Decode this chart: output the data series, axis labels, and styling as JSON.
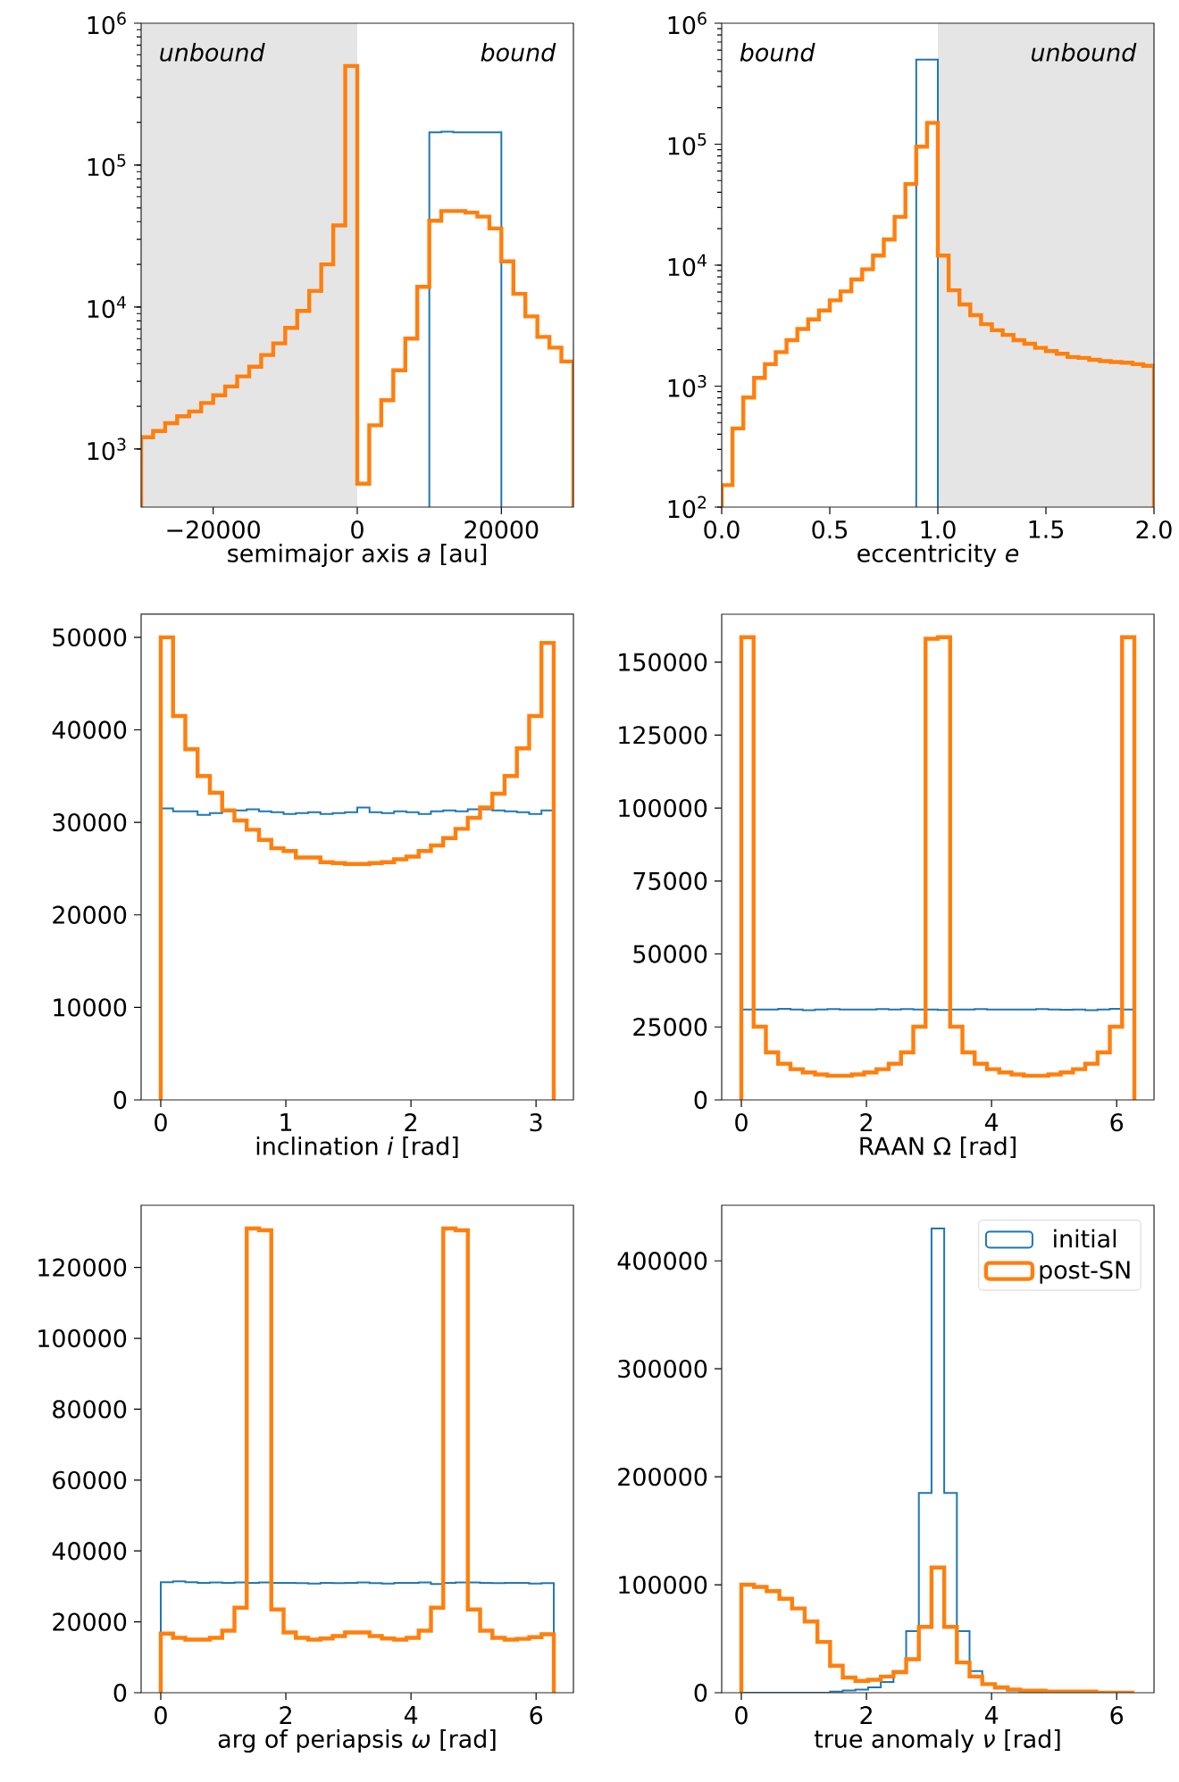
{
  "chart_data": [
    {
      "type": "histogram",
      "xlabel": "semimajor axis *a*  [au]",
      "log": "y",
      "xlim": [
        -30000,
        30000
      ],
      "ylim": [
        390,
        1000000
      ],
      "xticks": [
        {
          "value": -20000,
          "label": "−20000"
        },
        0,
        20000
      ],
      "yticks": [
        {
          "value": 1000,
          "label": "10$^{3}$"
        },
        {
          "value": 10000,
          "label": "10$^{4}$"
        },
        {
          "value": 100000,
          "label": "10$^{5}$"
        },
        {
          "value": 1000000,
          "label": "10$^{6}$"
        }
      ],
      "bands": [
        {
          "axis": "x",
          "from": -30000,
          "to": 0,
          "label": "unbound",
          "color": "#e5e5e5"
        }
      ],
      "annotations": [
        "bound"
      ],
      "bins": [
        -30000,
        -28333.33,
        -26666.67,
        -25000,
        -23333.33,
        -21666.67,
        -20000,
        -18333.33,
        -16666.67,
        -15000,
        -13333.33,
        -11666.67,
        -10000,
        -8333.33,
        -6666.67,
        -5000,
        -3333.33,
        -1666.67,
        0,
        1666.67,
        3333.33,
        5000,
        6666.67,
        8333.33,
        10000,
        11666.67,
        13333.33,
        15000,
        16666.67,
        18333.33,
        20000,
        21666.67,
        23333.33,
        25000,
        26666.67,
        28333.33,
        30000
      ],
      "series": [
        {
          "color": "#1f77b4",
          "bins": [
            10000,
            11666.67,
            13333.33,
            15000,
            16666.67,
            18333.33,
            20000
          ],
          "values": [
            170000,
            172000,
            170000,
            170000,
            170000,
            170000
          ]
        },
        {
          "color": "#ff7f0e",
          "values": [
            1210,
            1340,
            1520,
            1700,
            1840,
            2110,
            2390,
            2760,
            3250,
            3800,
            4600,
            5550,
            7130,
            9400,
            13000,
            20000,
            37600,
            500000,
            570,
            1470,
            2210,
            3590,
            6000,
            13900,
            40600,
            47500,
            47500,
            46300,
            43400,
            35800,
            21000,
            12400,
            8600,
            6160,
            5180,
            4140
          ]
        }
      ]
    },
    {
      "type": "histogram",
      "xlabel": "eccentricity *e*",
      "log": "y",
      "xlim": [
        0,
        2
      ],
      "ylim": [
        100,
        1000000
      ],
      "xticks": [
        {
          "value": 0,
          "label": "0.0"
        },
        {
          "value": 0.5,
          "label": "0.5"
        },
        {
          "value": 1,
          "label": "1.0"
        },
        {
          "value": 1.5,
          "label": "1.5"
        },
        {
          "value": 2,
          "label": "2.0"
        }
      ],
      "yticks": [
        {
          "value": 100,
          "label": "10$^{2}$"
        },
        {
          "value": 1000,
          "label": "10$^{3}$"
        },
        {
          "value": 10000,
          "label": "10$^{4}$"
        },
        {
          "value": 100000,
          "label": "10$^{5}$"
        },
        {
          "value": 1000000,
          "label": "10$^{6}$"
        }
      ],
      "bands": [
        {
          "axis": "x",
          "from": 1,
          "to": 2,
          "label": "unbound",
          "color": "#e5e5e5"
        }
      ],
      "annotations": [
        "bound"
      ],
      "bins": [
        0,
        0.05,
        0.1,
        0.15,
        0.2,
        0.25,
        0.3,
        0.35,
        0.4,
        0.45,
        0.5,
        0.55,
        0.6,
        0.65,
        0.7,
        0.75,
        0.8,
        0.85,
        0.9,
        0.95,
        1.0,
        1.05,
        1.1,
        1.15,
        1.2,
        1.25,
        1.3,
        1.35,
        1.4,
        1.45,
        1.5,
        1.55,
        1.6,
        1.65,
        1.7,
        1.75,
        1.8,
        1.85,
        1.9,
        1.95,
        2.0
      ],
      "series": [
        {
          "color": "#1f77b4",
          "bins": [
            0.9,
            0.95,
            1.0
          ],
          "values": [
            500000,
            500000
          ]
        },
        {
          "color": "#ff7f0e",
          "values": [
            152,
            447,
            805,
            1170,
            1520,
            1910,
            2400,
            2970,
            3560,
            4220,
            5120,
            6070,
            7620,
            9240,
            12000,
            16300,
            25100,
            46800,
            95500,
            150000,
            12000,
            6200,
            4730,
            3860,
            3250,
            2900,
            2650,
            2400,
            2240,
            2070,
            1950,
            1850,
            1740,
            1710,
            1650,
            1610,
            1580,
            1560,
            1520,
            1470
          ]
        }
      ]
    },
    {
      "type": "histogram",
      "xlabel": "inclination *i*  [rad]",
      "xlim": [
        -0.157,
        3.299
      ],
      "ylim": [
        0,
        52500
      ],
      "xticks": [
        0,
        1,
        2,
        3
      ],
      "yticks": [
        0,
        10000,
        20000,
        30000,
        40000,
        50000
      ],
      "bins": [
        0,
        0.0982,
        0.1963,
        0.2945,
        0.3927,
        0.4909,
        0.589,
        0.6872,
        0.7854,
        0.8836,
        0.9817,
        1.0799,
        1.1781,
        1.2763,
        1.3744,
        1.4726,
        1.5708,
        1.669,
        1.7671,
        1.8653,
        1.9635,
        2.0617,
        2.1598,
        2.258,
        2.3562,
        2.4544,
        2.5525,
        2.6507,
        2.7489,
        2.8471,
        2.9452,
        3.0434,
        3.1416
      ],
      "series": [
        {
          "color": "#1f77b4",
          "values": [
            31500,
            31200,
            31200,
            30800,
            31000,
            31200,
            31300,
            31400,
            31200,
            31100,
            30900,
            31000,
            31100,
            30900,
            31000,
            31100,
            31600,
            31100,
            31000,
            31200,
            31100,
            30900,
            31200,
            31300,
            31200,
            31400,
            31400,
            31300,
            31200,
            31100,
            30900,
            31300
          ]
        },
        {
          "color": "#ff7f0e",
          "values": [
            50000,
            41500,
            37900,
            35000,
            33200,
            31300,
            30200,
            29200,
            28100,
            27200,
            26900,
            26200,
            26200,
            25700,
            25600,
            25500,
            25500,
            25600,
            25700,
            26000,
            26300,
            26900,
            27500,
            28300,
            29300,
            30500,
            31600,
            33100,
            35000,
            38000,
            41500,
            49400
          ]
        }
      ]
    },
    {
      "type": "histogram",
      "xlabel": "RAAN Ω  [rad]",
      "xlim": [
        -0.314,
        6.597
      ],
      "ylim": [
        0,
        166400
      ],
      "xticks": [
        0,
        2,
        4,
        6
      ],
      "yticks": [
        0,
        25000,
        50000,
        75000,
        100000,
        125000,
        150000
      ],
      "bins": [
        0,
        0.1963,
        0.3927,
        0.589,
        0.7854,
        0.9817,
        1.1781,
        1.3744,
        1.5708,
        1.7671,
        1.9635,
        2.1598,
        2.3562,
        2.5525,
        2.7489,
        2.9452,
        3.1416,
        3.3379,
        3.5343,
        3.7306,
        3.927,
        4.1233,
        4.3197,
        4.516,
        4.7124,
        4.9087,
        5.1051,
        5.3014,
        5.4978,
        5.6941,
        5.8905,
        6.0868,
        6.2832
      ],
      "series": [
        {
          "color": "#1f77b4",
          "values": [
            31000,
            31000,
            31000,
            31200,
            31000,
            30700,
            31000,
            31100,
            31000,
            31000,
            31000,
            31100,
            31000,
            31100,
            31000,
            31000,
            30800,
            31000,
            31000,
            31100,
            31000,
            31000,
            31000,
            31000,
            31100,
            31000,
            30900,
            31000,
            30700,
            31000,
            31200,
            31000
          ]
        },
        {
          "color": "#ff7f0e",
          "values": [
            158500,
            25100,
            16300,
            12400,
            10500,
            9400,
            8700,
            8300,
            8300,
            8700,
            9400,
            10500,
            12400,
            16300,
            25100,
            158000,
            158500,
            25100,
            16300,
            12400,
            10500,
            9400,
            8700,
            8300,
            8300,
            8700,
            9400,
            10500,
            12400,
            16300,
            25100,
            158500
          ]
        }
      ]
    },
    {
      "type": "histogram",
      "xlabel": "arg of periapsis *ω*  [rad]",
      "xlim": [
        -0.314,
        6.597
      ],
      "ylim": [
        0,
        137550
      ],
      "xticks": [
        0,
        2,
        4,
        6
      ],
      "yticks": [
        0,
        20000,
        40000,
        60000,
        80000,
        100000,
        120000
      ],
      "bins": [
        0,
        0.1963,
        0.3927,
        0.589,
        0.7854,
        0.9817,
        1.1781,
        1.3744,
        1.5708,
        1.7671,
        1.9635,
        2.1598,
        2.3562,
        2.5525,
        2.7489,
        2.9452,
        3.1416,
        3.3379,
        3.5343,
        3.7306,
        3.927,
        4.1233,
        4.3197,
        4.516,
        4.7124,
        4.9087,
        5.1051,
        5.3014,
        5.4978,
        5.6941,
        5.8905,
        6.0868,
        6.2832
      ],
      "series": [
        {
          "color": "#1f77b4",
          "values": [
            31200,
            31400,
            31200,
            31000,
            31100,
            31000,
            31100,
            31000,
            31100,
            31000,
            31000,
            30900,
            30800,
            31000,
            30900,
            31000,
            31100,
            30900,
            30800,
            31000,
            31000,
            31100,
            30700,
            31000,
            31100,
            31100,
            31000,
            30900,
            31000,
            31000,
            30800,
            30900
          ]
        },
        {
          "color": "#ff7f0e",
          "values": [
            16700,
            15500,
            15000,
            15000,
            15500,
            17500,
            24000,
            131000,
            130500,
            23500,
            17000,
            15500,
            15000,
            15300,
            16000,
            17000,
            17000,
            16000,
            15300,
            15000,
            15500,
            17500,
            24000,
            131000,
            130500,
            23500,
            17500,
            15500,
            15000,
            15200,
            15700,
            16500
          ]
        }
      ]
    },
    {
      "type": "histogram",
      "xlabel": "true anomaly *ν*  [rad]",
      "xlim": [
        -0.314,
        6.597
      ],
      "ylim": [
        0,
        451500
      ],
      "xticks": [
        0,
        2,
        4,
        6
      ],
      "yticks": [
        0,
        100000,
        200000,
        300000,
        400000
      ],
      "legend": "top right",
      "bins": [
        0,
        0.2027,
        0.4054,
        0.608,
        0.8107,
        1.0134,
        1.2161,
        1.4188,
        1.6215,
        1.8241,
        2.0268,
        2.2295,
        2.4322,
        2.6349,
        2.8376,
        3.0402,
        3.2429,
        3.4456,
        3.6483,
        3.851,
        4.0537,
        4.2563,
        4.459,
        4.6617,
        4.8644,
        5.0671,
        5.2698,
        5.4724,
        5.6751,
        5.8778,
        6.0805,
        6.2832
      ],
      "series": [
        {
          "name": "initial",
          "color": "#1f77b4",
          "values": [
            0,
            0,
            0,
            0,
            0,
            0,
            0,
            1000,
            2000,
            3000,
            5000,
            10000,
            20000,
            57000,
            185000,
            430000,
            185000,
            57000,
            20000,
            8000,
            4000,
            2000,
            1000,
            1000,
            0,
            0,
            0,
            0,
            0,
            0,
            0
          ]
        },
        {
          "name": "post-SN",
          "color": "#ff7f0e",
          "values": [
            100000,
            98000,
            94000,
            87000,
            78000,
            66000,
            47000,
            25000,
            14000,
            11000,
            12000,
            15000,
            19000,
            31000,
            61000,
            116000,
            61000,
            28000,
            15000,
            8000,
            5000,
            3000,
            2000,
            2000,
            1000,
            1000,
            1000,
            1000,
            0,
            0,
            0
          ]
        }
      ]
    }
  ]
}
